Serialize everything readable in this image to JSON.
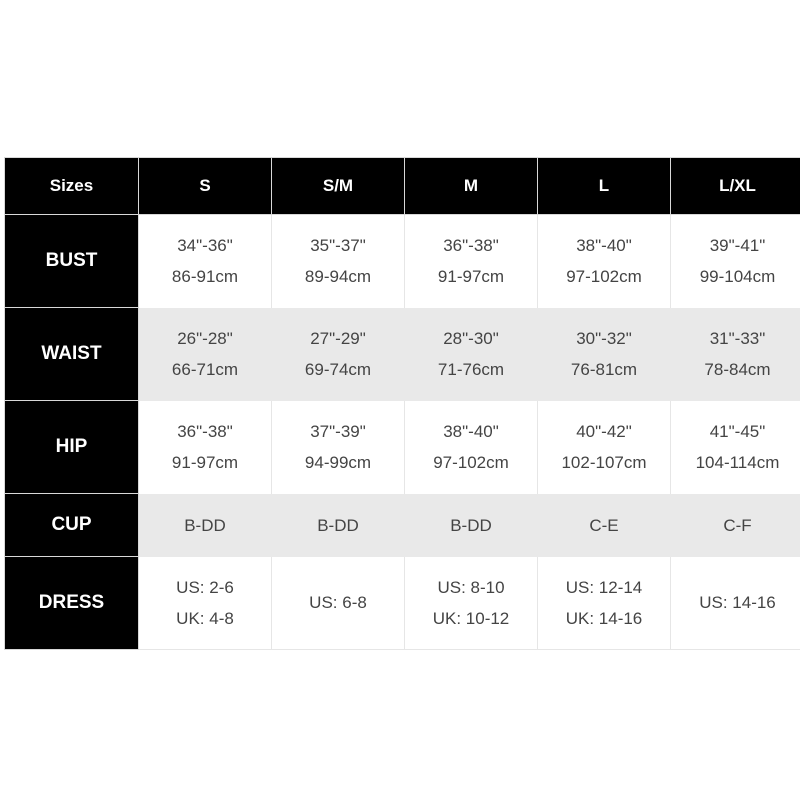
{
  "header": [
    "Sizes",
    "S",
    "S/M",
    "M",
    "L",
    "L/XL"
  ],
  "rows": [
    {
      "label": "BUST",
      "alt": false,
      "tall": true,
      "cells": [
        [
          "34\"-36\"",
          "86-91cm"
        ],
        [
          "35\"-37\"",
          "89-94cm"
        ],
        [
          "36\"-38\"",
          "91-97cm"
        ],
        [
          "38\"-40\"",
          "97-102cm"
        ],
        [
          "39\"-41\"",
          "99-104cm"
        ]
      ]
    },
    {
      "label": "WAIST",
      "alt": true,
      "tall": true,
      "cells": [
        [
          "26\"-28\"",
          "66-71cm"
        ],
        [
          "27\"-29\"",
          "69-74cm"
        ],
        [
          "28\"-30\"",
          "71-76cm"
        ],
        [
          "30\"-32\"",
          "76-81cm"
        ],
        [
          "31\"-33\"",
          "78-84cm"
        ]
      ]
    },
    {
      "label": "HIP",
      "alt": false,
      "tall": true,
      "cells": [
        [
          "36\"-38\"",
          "91-97cm"
        ],
        [
          "37\"-39\"",
          "94-99cm"
        ],
        [
          "38\"-40\"",
          "97-102cm"
        ],
        [
          "40\"-42\"",
          "102-107cm"
        ],
        [
          "41\"-45\"",
          "104-114cm"
        ]
      ]
    },
    {
      "label": "CUP",
      "alt": true,
      "tall": false,
      "cells": [
        [
          "B-DD"
        ],
        [
          "B-DD"
        ],
        [
          "B-DD"
        ],
        [
          "C-E"
        ],
        [
          "C-F"
        ]
      ]
    },
    {
      "label": "DRESS",
      "alt": false,
      "tall": true,
      "cells": [
        [
          "US: 2-6",
          "UK: 4-8"
        ],
        [
          "US: 6-8"
        ],
        [
          "US: 8-10",
          "UK: 10-12"
        ],
        [
          "US: 12-14",
          "UK: 14-16"
        ],
        [
          "US: 14-16"
        ]
      ]
    }
  ],
  "colors": {
    "header_bg": "#000000",
    "header_text": "#ffffff",
    "alt_row_bg": "#e9e9e9",
    "cell_text": "#444444"
  }
}
